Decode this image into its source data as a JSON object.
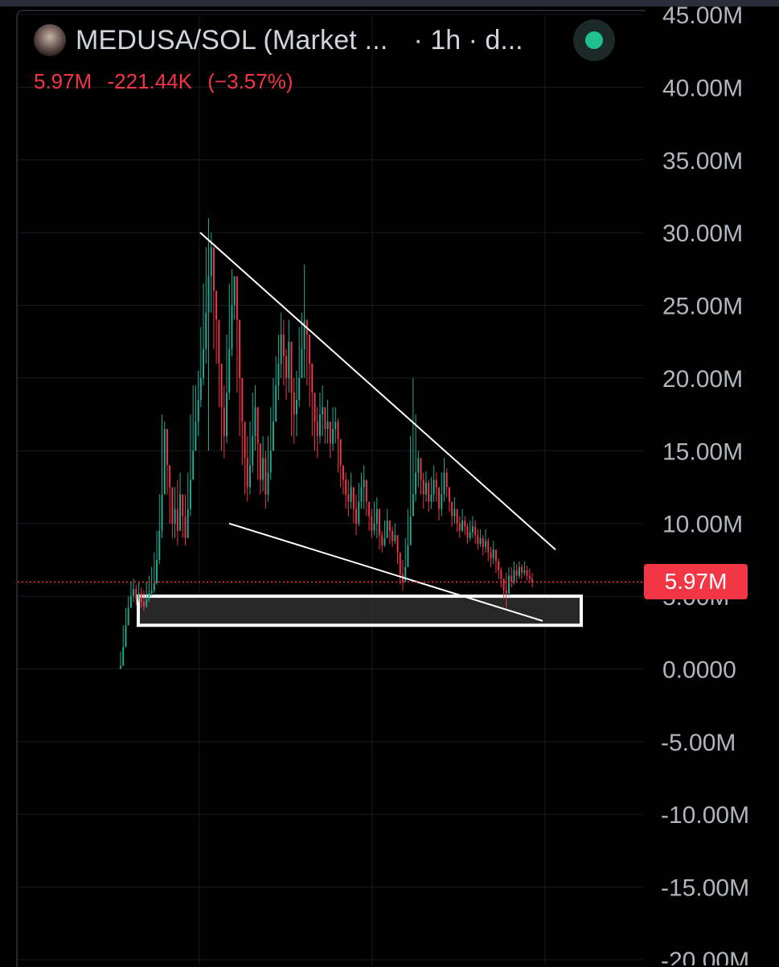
{
  "header": {
    "pair": "MEDUSA/SOL (Market ...",
    "meta": "· 1h · d...",
    "last_price": "5.97M",
    "change": "-221.44K",
    "change_pct": "(−3.57%)"
  },
  "price_badge": "5.97M",
  "colors": {
    "up": "#22ab94",
    "down": "#f23645",
    "line": "#ffffff",
    "background": "#000000",
    "grid": "#1a1d24"
  },
  "chart_data": {
    "type": "candlestick",
    "title": "MEDUSA/SOL (Market ...",
    "interval": "1h",
    "ylim": [
      -20000000,
      45000000
    ],
    "yticks": [
      "45.00M",
      "40.00M",
      "35.00M",
      "30.00M",
      "25.00M",
      "20.00M",
      "15.00M",
      "10.00M",
      "5.00M",
      "0.0000",
      "-5.00M",
      "-10.00M",
      "-15.00M",
      "-20.00M"
    ],
    "last_price": 5970000,
    "trendlines": [
      {
        "name": "upper",
        "from": [
          0.145,
          30000000
        ],
        "to": [
          0.7,
          8200000
        ]
      },
      {
        "name": "lower",
        "from": [
          0.19,
          10000000
        ],
        "to": [
          0.68,
          3500000
        ]
      }
    ],
    "support_zone": {
      "low": 3000000,
      "high": 5000000,
      "x_from": 0.03,
      "x_to": 0.75
    },
    "series_close": [
      0.2,
      1.5,
      3,
      4.2,
      5,
      5.5,
      4.8,
      5.2,
      4.6,
      4.3,
      4.8,
      5.2,
      5.4,
      5.9,
      7.5,
      9.5,
      12,
      16.5,
      14,
      12.5,
      10,
      11,
      9.5,
      12,
      10.5,
      9,
      11,
      13,
      15,
      17,
      18.5,
      20,
      22,
      24.5,
      27,
      29,
      26,
      24,
      21,
      18,
      16,
      19,
      22,
      25,
      27,
      24,
      20,
      17,
      14.5,
      12.5,
      14,
      16,
      18,
      15.5,
      13,
      14.5,
      12,
      13.5,
      15,
      17,
      19.5,
      21,
      23,
      21.5,
      20,
      22.5,
      19,
      17.5,
      18.5,
      20,
      22,
      24,
      23,
      21,
      19,
      17,
      16,
      17.5,
      18,
      16.5,
      17,
      15.5,
      16.5,
      17,
      15.8,
      14,
      13,
      12,
      11.5,
      12.5,
      11,
      10,
      11.5,
      12.5,
      13,
      11.5,
      10.5,
      9.5,
      10,
      11,
      9.2,
      8.5,
      9,
      10.2,
      9.5,
      8.8,
      9.2,
      8,
      6.5,
      6,
      7,
      8.5,
      10.5,
      12,
      13.5,
      14.5,
      13,
      12,
      12.8,
      11.5,
      12,
      13,
      12.5,
      11,
      12,
      13.5,
      12.5,
      11.5,
      10.5,
      11,
      10,
      9.5,
      10.2,
      9.8,
      9,
      9.4,
      9.8,
      9.2,
      8.6,
      9,
      8.4,
      8.8,
      8,
      7.6,
      8.2,
      7.4,
      6.8,
      6.2,
      5.4,
      5.2,
      6.4,
      6,
      6.8,
      6.4,
      7,
      6.6,
      6.8,
      6.4,
      6.2,
      5.97
    ],
    "series_high": [
      1.2,
      3,
      4.2,
      5,
      6,
      6.2,
      5.8,
      6,
      5.6,
      5.4,
      6,
      6.4,
      7,
      8,
      9.5,
      12,
      17.5,
      17,
      15,
      13.5,
      12,
      12.5,
      13,
      13.5,
      12,
      12,
      13.5,
      17.5,
      19.5,
      19.5,
      20.5,
      23.5,
      26.5,
      29,
      31,
      30,
      27.5,
      25,
      22,
      20,
      19.5,
      23,
      26.5,
      27.5,
      27,
      25.5,
      22,
      18,
      16.5,
      16,
      17,
      19,
      19.5,
      17,
      15.5,
      16,
      15,
      16,
      18,
      20,
      21.5,
      23,
      24.5,
      24,
      22,
      24,
      21,
      20,
      20.5,
      23.5,
      24.5,
      27.8,
      24,
      22.5,
      20.5,
      18.5,
      18,
      19,
      19.5,
      18,
      18.5,
      17,
      18,
      18,
      17.2,
      15,
      14,
      13.5,
      13,
      13.5,
      12,
      12,
      12.8,
      13.5,
      14,
      12.5,
      11.5,
      11,
      11.5,
      11.8,
      10.5,
      9.5,
      10.2,
      11,
      10.2,
      9.8,
      10,
      9,
      8,
      7.5,
      9,
      11,
      16,
      20,
      17.5,
      15,
      14,
      13.5,
      13.6,
      13,
      13.2,
      14,
      13.5,
      12.5,
      13.5,
      14.5,
      13.8,
      12.5,
      11.5,
      11.8,
      11,
      10.5,
      11,
      10.5,
      10,
      10.2,
      10.5,
      10.2,
      9.6,
      9.6,
      9.2,
      9.6,
      9,
      8.4,
      8.8,
      8.2,
      7.6,
      7,
      6.2,
      6.6,
      7,
      7,
      7.4,
      7.2,
      7.4,
      7.2,
      7.4,
      7.1,
      6.9,
      6.6
    ],
    "series_low": [
      0,
      0.2,
      1.5,
      3,
      4.2,
      4.6,
      4.4,
      4.6,
      4.2,
      4,
      4.2,
      4.6,
      5,
      5.2,
      5.8,
      7.2,
      9,
      12,
      12,
      10,
      9,
      9,
      8.5,
      9.5,
      9,
      8.5,
      9,
      10.5,
      13,
      15,
      16,
      18,
      19.5,
      21,
      15,
      24.5,
      22,
      21,
      18,
      15,
      14.5,
      15.5,
      18.5,
      21.5,
      24,
      19,
      16,
      14,
      12,
      11.5,
      12,
      13.5,
      15,
      13,
      12,
      12.2,
      11,
      11.5,
      13,
      15,
      17,
      18.5,
      20,
      19.5,
      18.5,
      19,
      16,
      15.5,
      16,
      18,
      20,
      20,
      19.5,
      18,
      16,
      15,
      14.5,
      15.5,
      16,
      15.5,
      15.5,
      14.5,
      15,
      15.5,
      13.5,
      12.5,
      12,
      11,
      10.5,
      11,
      10,
      9.2,
      9.8,
      11,
      11,
      10.5,
      9.5,
      9,
      9.2,
      9,
      8.2,
      8,
      8.4,
      9.2,
      8.6,
      8.4,
      8.6,
      7.2,
      5.8,
      5.4,
      6,
      7.5,
      8.5,
      10.5,
      11.5,
      12.5,
      12,
      11,
      11.5,
      10.8,
      11,
      11.5,
      11.5,
      10.2,
      10.5,
      11.5,
      11.8,
      10.8,
      9.8,
      10,
      9.4,
      9,
      9.4,
      9.2,
      8.6,
      8.8,
      9,
      8.6,
      8.2,
      8.4,
      7.8,
      8,
      7.4,
      7,
      7.2,
      6.6,
      6.2,
      5.6,
      4.8,
      4.2,
      5,
      5.6,
      5.8,
      6,
      6.2,
      6.2,
      6.4,
      6.1,
      5.9,
      5.6
    ]
  }
}
